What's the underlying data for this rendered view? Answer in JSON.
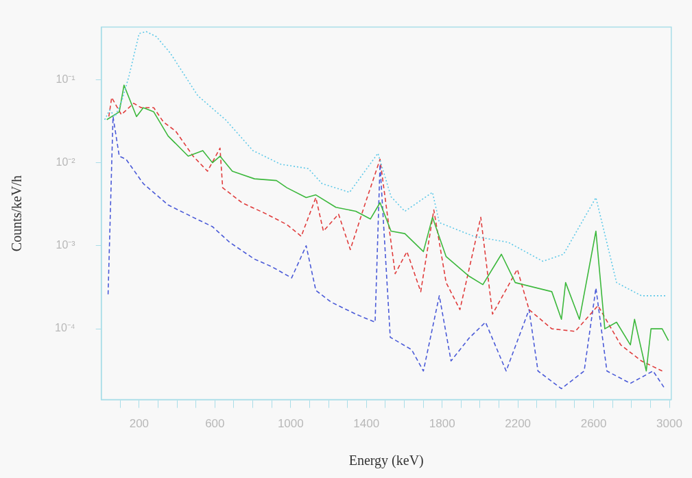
{
  "chart_data": {
    "type": "line",
    "xlabel": "Energy (keV)",
    "ylabel": "Counts/keV/h",
    "log": "y",
    "grid": false,
    "legend": false,
    "marker": "none",
    "xlim": [
      0,
      3010
    ],
    "ylim": [
      1.4e-05,
      0.43
    ],
    "xticks": [
      {
        "value": 100,
        "label": null
      },
      200,
      {
        "value": 300,
        "label": null
      },
      {
        "value": 400,
        "label": null
      },
      {
        "value": 500,
        "label": null
      },
      600,
      {
        "value": 700,
        "label": null
      },
      {
        "value": 800,
        "label": null
      },
      {
        "value": 900,
        "label": null
      },
      1000,
      {
        "value": 1100,
        "label": null
      },
      {
        "value": 1200,
        "label": null
      },
      {
        "value": 1300,
        "label": null
      },
      1400,
      {
        "value": 1500,
        "label": null
      },
      {
        "value": 1600,
        "label": null
      },
      {
        "value": 1700,
        "label": null
      },
      1800,
      {
        "value": 1900,
        "label": null
      },
      {
        "value": 2000,
        "label": null
      },
      {
        "value": 2100,
        "label": null
      },
      2200,
      {
        "value": 2300,
        "label": null
      },
      {
        "value": 2400,
        "label": null
      },
      {
        "value": 2500,
        "label": null
      },
      2600,
      {
        "value": 2700,
        "label": null
      },
      {
        "value": 2800,
        "label": null
      },
      {
        "value": 2900,
        "label": null
      },
      3000
    ],
    "yticks": [
      {
        "value": 0.0001,
        "label": "10⁻⁴"
      },
      {
        "value": 0.001,
        "label": "10⁻³"
      },
      {
        "value": 0.01,
        "label": "10⁻²"
      },
      {
        "value": 0.1,
        "label": "10⁻¹"
      }
    ],
    "series": [
      {
        "color": "#5cc8e8",
        "line_style": "dotted",
        "x": [
          18,
          44,
          73,
          109,
          146,
          200,
          237,
          291,
          364,
          510,
          656,
          801,
          947,
          1093,
          1166,
          1311,
          1461,
          1530,
          1603,
          1749,
          1785,
          1967,
          2149,
          2332,
          2441,
          2612,
          2721,
          2852,
          2987
        ],
        "values": [
          0.033,
          0.043,
          0.036,
          0.056,
          0.11,
          0.36,
          0.38,
          0.33,
          0.21,
          0.064,
          0.033,
          0.014,
          0.0096,
          0.0085,
          0.0056,
          0.0044,
          0.013,
          0.0039,
          0.0026,
          0.0044,
          0.0019,
          0.0013,
          0.0011,
          0.00065,
          0.00079,
          0.0038,
          0.00036,
          0.00025,
          0.00025
        ]
      },
      {
        "color": "#3cb83c",
        "line_style": "solid",
        "x": [
          29,
          95,
          120,
          186,
          222,
          277,
          353,
          459,
          536,
          587,
          627,
          692,
          809,
          925,
          980,
          1082,
          1133,
          1239,
          1344,
          1421,
          1472,
          1530,
          1603,
          1701,
          1749,
          1821,
          1942,
          2015,
          2113,
          2186,
          2379,
          2430,
          2452,
          2525,
          2612,
          2659,
          2721,
          2794,
          2816,
          2878,
          2903,
          2962,
          2995
        ],
        "values": [
          0.033,
          0.041,
          0.086,
          0.036,
          0.046,
          0.041,
          0.021,
          0.012,
          0.014,
          0.01,
          0.012,
          0.0079,
          0.0064,
          0.0061,
          0.005,
          0.0038,
          0.0041,
          0.0029,
          0.0026,
          0.0021,
          0.0033,
          0.0015,
          0.0014,
          0.00085,
          0.0022,
          0.00074,
          0.00043,
          0.00034,
          0.00079,
          0.00036,
          0.00028,
          0.00013,
          0.00036,
          0.00013,
          0.0015,
          0.0001,
          0.00012,
          6.4e-05,
          0.00013,
          3.1e-05,
          0.0001,
          0.0001,
          7.2e-05
        ]
      },
      {
        "color": "#e03c3c",
        "line_style": "dashed",
        "x": [
          40,
          55,
          106,
          171,
          211,
          277,
          328,
          393,
          485,
          561,
          627,
          641,
          743,
          874,
          980,
          1056,
          1133,
          1173,
          1253,
          1315,
          1395,
          1472,
          1552,
          1614,
          1687,
          1756,
          1821,
          1894,
          2004,
          2066,
          2197,
          2259,
          2379,
          2503,
          2623,
          2743,
          2852,
          2962
        ],
        "values": [
          0.036,
          0.061,
          0.038,
          0.052,
          0.046,
          0.046,
          0.031,
          0.024,
          0.012,
          0.0079,
          0.015,
          0.005,
          0.0033,
          0.0024,
          0.0018,
          0.0013,
          0.0038,
          0.0015,
          0.0024,
          0.0009,
          0.0033,
          0.011,
          0.00046,
          0.00085,
          0.00028,
          0.0027,
          0.00036,
          0.00017,
          0.0022,
          0.00015,
          0.00052,
          0.00017,
          0.0001,
          9.3e-05,
          0.00019,
          6.4e-05,
          4.1e-05,
          3.1e-05
        ]
      },
      {
        "color": "#4a5ad8",
        "line_style": "dashed",
        "x": [
          36,
          62,
          95,
          131,
          222,
          353,
          485,
          587,
          678,
          809,
          900,
          1005,
          1082,
          1133,
          1213,
          1344,
          1446,
          1472,
          1526,
          1639,
          1701,
          1785,
          1847,
          1942,
          2029,
          2138,
          2259,
          2306,
          2430,
          2550,
          2612,
          2670,
          2794,
          2914,
          2976
        ],
        "values": [
          0.00026,
          0.036,
          0.012,
          0.011,
          0.0056,
          0.0031,
          0.0022,
          0.0017,
          0.0011,
          0.00069,
          0.00056,
          0.00041,
          0.001,
          0.00029,
          0.00021,
          0.00015,
          0.00012,
          0.0096,
          7.9e-05,
          5.6e-05,
          3.1e-05,
          0.00025,
          4.1e-05,
          7.7e-05,
          0.00012,
          3.1e-05,
          0.00017,
          3.1e-05,
          1.9e-05,
          3.1e-05,
          0.00031,
          3.1e-05,
          2.2e-05,
          3.1e-05,
          1.9e-05
        ]
      }
    ]
  }
}
